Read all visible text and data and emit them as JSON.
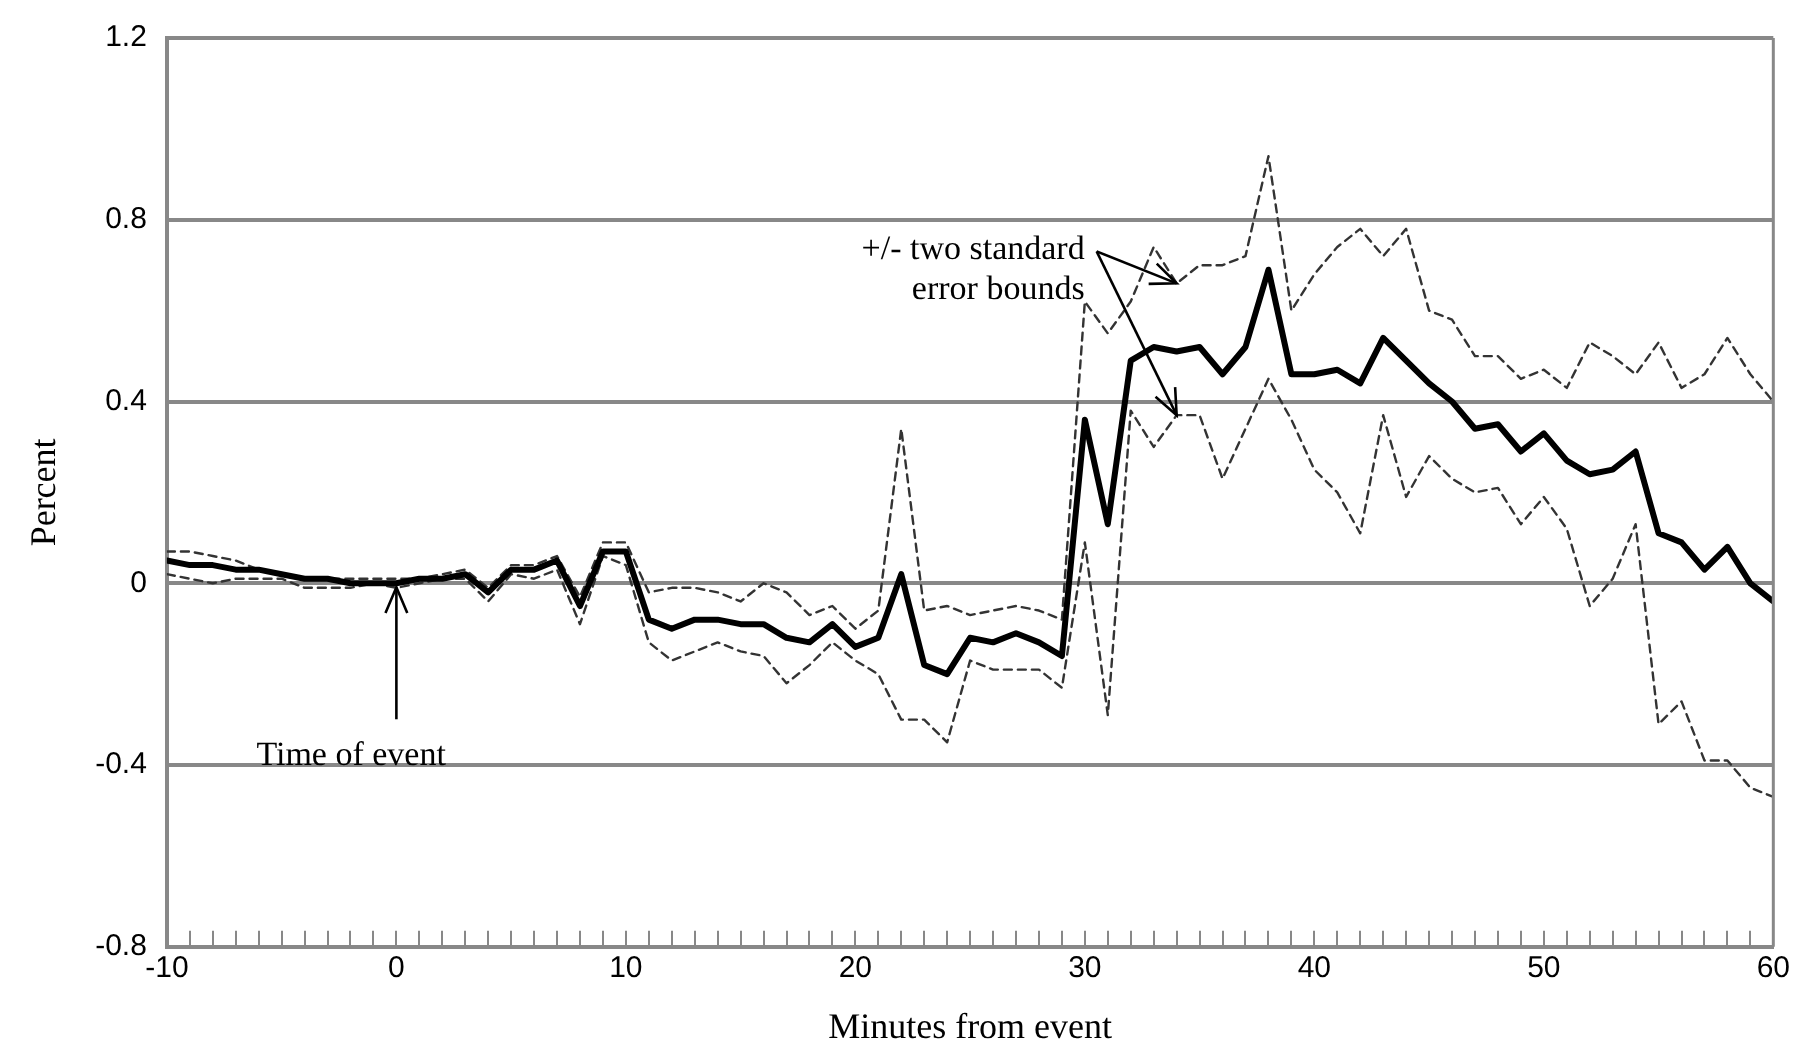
{
  "chart_data": {
    "type": "line",
    "xlabel": "Minutes from event",
    "ylabel": "Percent",
    "x": [
      -10,
      -9,
      -8,
      -7,
      -6,
      -5,
      -4,
      -3,
      -2,
      -1,
      0,
      1,
      2,
      3,
      4,
      5,
      6,
      7,
      8,
      9,
      10,
      11,
      12,
      13,
      14,
      15,
      16,
      17,
      18,
      19,
      20,
      21,
      22,
      23,
      24,
      25,
      26,
      27,
      28,
      29,
      30,
      31,
      32,
      33,
      34,
      35,
      36,
      37,
      38,
      39,
      40,
      41,
      42,
      43,
      44,
      45,
      46,
      47,
      48,
      49,
      50,
      51,
      52,
      53,
      54,
      55,
      56,
      57,
      58,
      59,
      60
    ],
    "series": [
      {
        "color": "#000000",
        "line_style": "solid",
        "values": [
          0.05,
          0.04,
          0.04,
          0.03,
          0.03,
          0.02,
          0.01,
          0.01,
          0,
          0,
          0,
          0.01,
          0.01,
          0.02,
          -0.02,
          0.03,
          0.03,
          0.05,
          -0.05,
          0.07,
          0.07,
          -0.08,
          -0.1,
          -0.08,
          -0.08,
          -0.09,
          -0.09,
          -0.12,
          -0.13,
          -0.09,
          -0.14,
          -0.12,
          0.02,
          -0.18,
          -0.2,
          -0.12,
          -0.13,
          -0.11,
          -0.13,
          -0.16,
          0.36,
          0.13,
          0.49,
          0.52,
          0.51,
          0.52,
          0.46,
          0.52,
          0.69,
          0.46,
          0.46,
          0.47,
          0.44,
          0.54,
          0.49,
          0.44,
          0.4,
          0.34,
          0.35,
          0.29,
          0.33,
          0.27,
          0.24,
          0.25,
          0.29,
          0.11,
          0.09,
          0.03,
          0.08,
          0,
          -0.04
        ]
      },
      {
        "color": "#333333",
        "line_style": "dashed",
        "values": [
          0.07,
          0.07,
          0.06,
          0.05,
          0.03,
          0.02,
          0.01,
          0.01,
          0.01,
          0.01,
          0.01,
          0.01,
          0.02,
          0.03,
          -0.01,
          0.04,
          0.04,
          0.06,
          -0.03,
          0.09,
          0.09,
          -0.02,
          -0.01,
          -0.01,
          -0.02,
          -0.04,
          0,
          -0.02,
          -0.07,
          -0.05,
          -0.1,
          -0.06,
          0.34,
          -0.06,
          -0.05,
          -0.07,
          -0.06,
          -0.05,
          -0.06,
          -0.08,
          0.62,
          0.55,
          0.62,
          0.74,
          0.66,
          0.7,
          0.7,
          0.72,
          0.94,
          0.6,
          0.68,
          0.74,
          0.78,
          0.72,
          0.78,
          0.6,
          0.58,
          0.5,
          0.5,
          0.45,
          0.47,
          0.43,
          0.53,
          0.5,
          0.46,
          0.53,
          0.43,
          0.46,
          0.54,
          0.46,
          0.4
        ]
      },
      {
        "color": "#333333",
        "line_style": "dashed",
        "values": [
          0.02,
          0.01,
          0,
          0.01,
          0.01,
          0.01,
          -0.01,
          -0.01,
          -0.01,
          0,
          -0.01,
          0,
          0.01,
          0.01,
          -0.04,
          0.02,
          0.01,
          0.03,
          -0.09,
          0.06,
          0.04,
          -0.13,
          -0.17,
          -0.15,
          -0.13,
          -0.15,
          -0.16,
          -0.22,
          -0.18,
          -0.13,
          -0.17,
          -0.2,
          -0.3,
          -0.3,
          -0.35,
          -0.17,
          -0.19,
          -0.19,
          -0.19,
          -0.23,
          0.09,
          -0.29,
          0.38,
          0.3,
          0.37,
          0.37,
          0.23,
          0.34,
          0.45,
          0.36,
          0.25,
          0.2,
          0.11,
          0.37,
          0.19,
          0.28,
          0.23,
          0.2,
          0.21,
          0.13,
          0.19,
          0.12,
          -0.05,
          0.01,
          0.13,
          -0.31,
          -0.26,
          -0.39,
          -0.39,
          -0.45,
          -0.47
        ]
      }
    ],
    "xlim": [
      -10,
      60
    ],
    "xticks": [
      -10,
      {
        "value": -9,
        "label": null
      },
      {
        "value": -8,
        "label": null
      },
      {
        "value": -7,
        "label": null
      },
      {
        "value": -6,
        "label": null
      },
      {
        "value": -5,
        "label": null
      },
      {
        "value": -4,
        "label": null
      },
      {
        "value": -3,
        "label": null
      },
      {
        "value": -2,
        "label": null
      },
      {
        "value": -1,
        "label": null
      },
      0,
      {
        "value": 1,
        "label": null
      },
      {
        "value": 2,
        "label": null
      },
      {
        "value": 3,
        "label": null
      },
      {
        "value": 4,
        "label": null
      },
      {
        "value": 5,
        "label": null
      },
      {
        "value": 6,
        "label": null
      },
      {
        "value": 7,
        "label": null
      },
      {
        "value": 8,
        "label": null
      },
      {
        "value": 9,
        "label": null
      },
      10,
      {
        "value": 11,
        "label": null
      },
      {
        "value": 12,
        "label": null
      },
      {
        "value": 13,
        "label": null
      },
      {
        "value": 14,
        "label": null
      },
      {
        "value": 15,
        "label": null
      },
      {
        "value": 16,
        "label": null
      },
      {
        "value": 17,
        "label": null
      },
      {
        "value": 18,
        "label": null
      },
      {
        "value": 19,
        "label": null
      },
      20,
      {
        "value": 21,
        "label": null
      },
      {
        "value": 22,
        "label": null
      },
      {
        "value": 23,
        "label": null
      },
      {
        "value": 24,
        "label": null
      },
      {
        "value": 25,
        "label": null
      },
      {
        "value": 26,
        "label": null
      },
      {
        "value": 27,
        "label": null
      },
      {
        "value": 28,
        "label": null
      },
      {
        "value": 29,
        "label": null
      },
      30,
      {
        "value": 31,
        "label": null
      },
      {
        "value": 32,
        "label": null
      },
      {
        "value": 33,
        "label": null
      },
      {
        "value": 34,
        "label": null
      },
      {
        "value": 35,
        "label": null
      },
      {
        "value": 36,
        "label": null
      },
      {
        "value": 37,
        "label": null
      },
      {
        "value": 38,
        "label": null
      },
      {
        "value": 39,
        "label": null
      },
      40,
      {
        "value": 41,
        "label": null
      },
      {
        "value": 42,
        "label": null
      },
      {
        "value": 43,
        "label": null
      },
      {
        "value": 44,
        "label": null
      },
      {
        "value": 45,
        "label": null
      },
      {
        "value": 46,
        "label": null
      },
      {
        "value": 47,
        "label": null
      },
      {
        "value": 48,
        "label": null
      },
      {
        "value": 49,
        "label": null
      },
      50,
      {
        "value": 51,
        "label": null
      },
      {
        "value": 52,
        "label": null
      },
      {
        "value": 53,
        "label": null
      },
      {
        "value": 54,
        "label": null
      },
      {
        "value": 55,
        "label": null
      },
      {
        "value": 56,
        "label": null
      },
      {
        "value": 57,
        "label": null
      },
      {
        "value": 58,
        "label": null
      },
      {
        "value": 59,
        "label": null
      },
      60
    ],
    "ylim": [
      -0.8,
      1.2
    ],
    "yticks": [
      -0.8,
      -0.4,
      0,
      0.4,
      0.8,
      1.2
    ],
    "grid": "y",
    "legend": false,
    "marker": "none",
    "annotations": [
      {
        "text": "+/- two standard error bounds",
        "x": 34,
        "y": 0.66
      },
      {
        "text": "Time of event",
        "x": 0,
        "y": 0
      }
    ]
  }
}
